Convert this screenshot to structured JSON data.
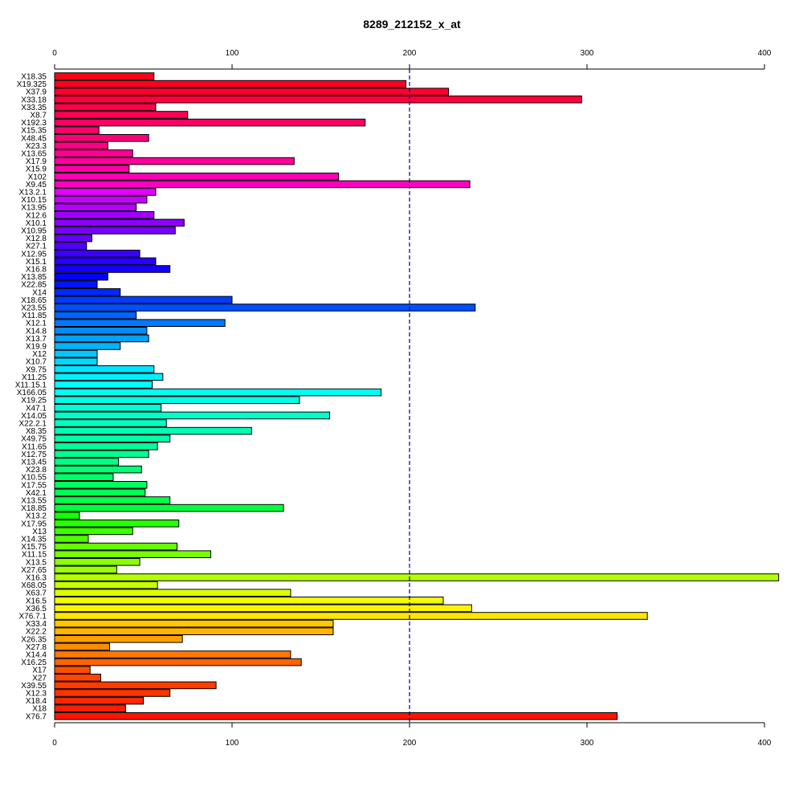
{
  "chart_data": {
    "type": "bar",
    "orientation": "horizontal",
    "title": "8289_212152_x_at",
    "xlim": [
      0,
      400
    ],
    "x_ticks": [
      0,
      100,
      200,
      300,
      400
    ],
    "reference_line": 200,
    "reference_line_color": "#000080",
    "categories": [
      "X18.35",
      "X19.325",
      "X37.9",
      "X33.18",
      "X33.35",
      "X8.7",
      "X192.3",
      "X15.35",
      "X48.45",
      "X23.3",
      "X13.65",
      "X17.9",
      "X15.9",
      "X102",
      "X9.45",
      "X13.2.1",
      "X10.15",
      "X13.95",
      "X12.6",
      "X10.1",
      "X10.95",
      "X12.8",
      "X27.1",
      "X12.95",
      "X15.1",
      "X16.8",
      "X13.85",
      "X22.85",
      "X14",
      "X18.65",
      "X23.55",
      "X11.85",
      "X12.1",
      "X14.8",
      "X13.7",
      "X19.9",
      "X12",
      "X10.7",
      "X9.75",
      "X11.25",
      "X11.15.1",
      "X166.05",
      "X19.25",
      "X47.1",
      "X14.05",
      "X22.2.1",
      "X8.35",
      "X49.75",
      "X11.65",
      "X12.75",
      "X13.45",
      "X23.8",
      "X10.55",
      "X17.55",
      "X42.1",
      "X13.55",
      "X18.85",
      "X13.2",
      "X17.95",
      "X13",
      "X14.35",
      "X15.75",
      "X11.15",
      "X13.5",
      "X27.65",
      "X16.3",
      "X68.05",
      "X63.7",
      "X16.5",
      "X36.5",
      "X76.7.1",
      "X33.4",
      "X22.2",
      "X26.35",
      "X27.8",
      "X14.4",
      "X16.25",
      "X17",
      "X27",
      "X39.55",
      "X12.3",
      "X18.4",
      "X18",
      "X76.7"
    ],
    "values": [
      56,
      198,
      222,
      297,
      57,
      75,
      175,
      25,
      53,
      30,
      44,
      135,
      42,
      160,
      234,
      57,
      52,
      46,
      56,
      73,
      68,
      21,
      18,
      48,
      57,
      65,
      30,
      24,
      37,
      100,
      237,
      46,
      96,
      52,
      53,
      37,
      24,
      24,
      56,
      61,
      55,
      184,
      138,
      60,
      155,
      63,
      111,
      65,
      58,
      53,
      36,
      49,
      33,
      52,
      51,
      65,
      129,
      14,
      70,
      44,
      19,
      69,
      88,
      48,
      35,
      408,
      58,
      133,
      219,
      235,
      334,
      157,
      157,
      72,
      31,
      133,
      139,
      20,
      26,
      91,
      65,
      50,
      40,
      317
    ],
    "colors": [
      "#ff0019",
      "#ff0024",
      "#ff0030",
      "#ff003c",
      "#ff0048",
      "#ff0054",
      "#ff0060",
      "#ff006c",
      "#ff0078",
      "#ff0084",
      "#ff0090",
      "#ff009c",
      "#ff00a8",
      "#ff00b4",
      "#ff00c0",
      "#e400ff",
      "#c800ff",
      "#b400ff",
      "#a000ff",
      "#8c00ff",
      "#7800ff",
      "#6400ff",
      "#5000ff",
      "#3c00ff",
      "#2800ff",
      "#1400ff",
      "#0000ff",
      "#0014ff",
      "#0028ff",
      "#003cff",
      "#0050ff",
      "#0064ff",
      "#0078ff",
      "#008cff",
      "#00a0ff",
      "#00b4ff",
      "#00c8ff",
      "#00d8ff",
      "#00e4ff",
      "#00f0ff",
      "#00fffc",
      "#00fff0",
      "#00ffe4",
      "#00ffd8",
      "#00ffcc",
      "#00ffc0",
      "#00ffb4",
      "#00ffa8",
      "#00ff9c",
      "#00ff90",
      "#00ff84",
      "#00ff78",
      "#00ff6c",
      "#00ff60",
      "#00ff54",
      "#00ff48",
      "#00ff3c",
      "#14ff00",
      "#28ff00",
      "#3cff00",
      "#50ff00",
      "#64ff00",
      "#78ff00",
      "#8cff00",
      "#a0ff00",
      "#b4ff00",
      "#c8ff00",
      "#dcff00",
      "#f0ff00",
      "#fff500",
      "#ffe600",
      "#ffc800",
      "#ffb400",
      "#ffa000",
      "#ff8c00",
      "#ff7800",
      "#ff6400",
      "#ff5000",
      "#ff4600",
      "#ff3c00",
      "#ff3200",
      "#ff2800",
      "#ff1e00",
      "#ff1400"
    ]
  }
}
